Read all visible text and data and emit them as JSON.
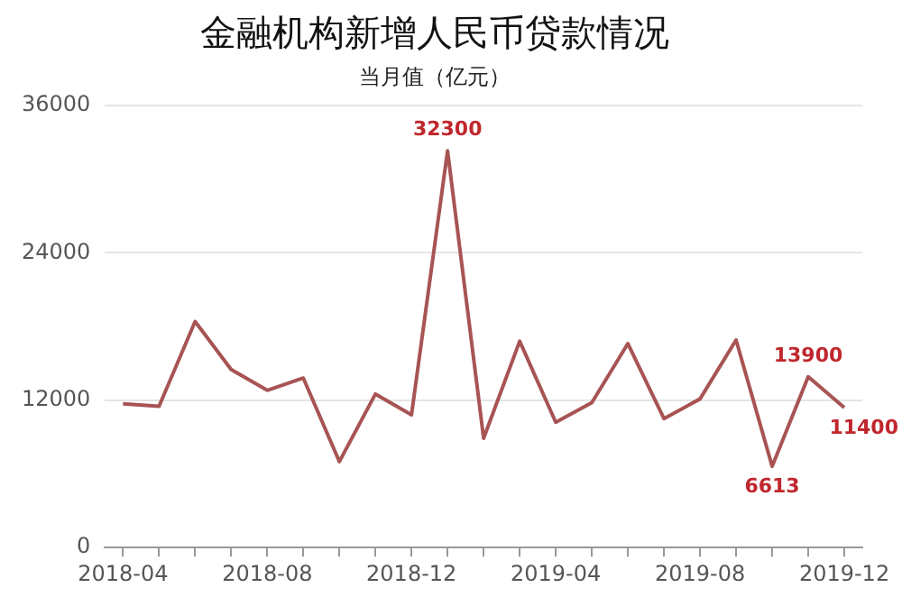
{
  "chart_data": {
    "type": "line",
    "title": "金融机构新增人民币贷款情况",
    "subtitle": "当月值（亿元）",
    "categories": [
      "2018-04",
      null,
      null,
      null,
      "2018-08",
      null,
      null,
      null,
      "2018-12",
      null,
      null,
      null,
      "2019-04",
      null,
      null,
      null,
      "2019-08",
      null,
      null,
      null,
      "2019-12"
    ],
    "series": [
      {
        "color": "#a85454",
        "values": [
          11700,
          11500,
          18400,
          14500,
          12800,
          13800,
          7000,
          12500,
          10800,
          32300,
          8900,
          16800,
          10200,
          11800,
          16600,
          10500,
          12100,
          16900,
          6613,
          13900,
          11400
        ],
        "value_labels": [
          null,
          null,
          null,
          null,
          null,
          null,
          null,
          null,
          null,
          "32300",
          null,
          null,
          null,
          null,
          null,
          null,
          null,
          null,
          "6613",
          "13900",
          "11400"
        ]
      }
    ],
    "ylim": [
      0,
      36000
    ],
    "yticks": [
      0,
      12000,
      24000,
      36000
    ],
    "grid": "y",
    "legend": false,
    "marker": "none",
    "line_style": "solid"
  }
}
